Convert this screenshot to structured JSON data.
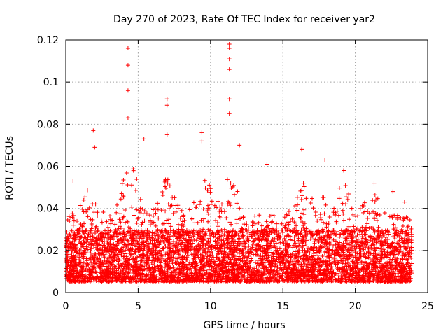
{
  "chart_data": {
    "type": "scatter",
    "title": "Day 270 of 2023, Rate Of TEC Index for receiver yar2",
    "xlabel": "GPS time / hours",
    "ylabel": "ROTI / TECUs",
    "xlim": [
      0,
      25
    ],
    "ylim": [
      0,
      0.12
    ],
    "xticks": [
      0,
      5,
      10,
      15,
      20,
      25
    ],
    "xtick_labels": [
      "0",
      "5",
      "10",
      "15",
      "20",
      "25"
    ],
    "yticks": [
      0,
      0.02,
      0.04,
      0.06,
      0.08,
      0.1,
      0.12
    ],
    "ytick_labels": [
      "0",
      "0.02",
      "0.04",
      "0.06",
      "0.08",
      "0.1",
      "0.12"
    ],
    "grid": true,
    "marker": "plus",
    "color": "#ff0000",
    "series": [
      {
        "name": "yar2",
        "x_range_hours": [
          0,
          23.9
        ],
        "typical_range": [
          0.005,
          0.03
        ],
        "peaks": [
          {
            "x": 4.3,
            "y": 0.116
          },
          {
            "x": 4.3,
            "y": 0.108
          },
          {
            "x": 4.3,
            "y": 0.096
          },
          {
            "x": 4.3,
            "y": 0.083
          },
          {
            "x": 11.3,
            "y": 0.118
          },
          {
            "x": 11.3,
            "y": 0.116
          },
          {
            "x": 11.3,
            "y": 0.111
          },
          {
            "x": 11.3,
            "y": 0.106
          },
          {
            "x": 11.3,
            "y": 0.092
          },
          {
            "x": 11.3,
            "y": 0.085
          },
          {
            "x": 7.0,
            "y": 0.092
          },
          {
            "x": 7.0,
            "y": 0.089
          },
          {
            "x": 7.0,
            "y": 0.075
          },
          {
            "x": 9.4,
            "y": 0.076
          },
          {
            "x": 9.4,
            "y": 0.072
          },
          {
            "x": 1.9,
            "y": 0.077
          },
          {
            "x": 2.0,
            "y": 0.069
          },
          {
            "x": 5.4,
            "y": 0.073
          },
          {
            "x": 12.0,
            "y": 0.07
          },
          {
            "x": 16.3,
            "y": 0.068
          },
          {
            "x": 17.9,
            "y": 0.063
          },
          {
            "x": 13.9,
            "y": 0.061
          },
          {
            "x": 19.2,
            "y": 0.058
          },
          {
            "x": 0.5,
            "y": 0.053
          },
          {
            "x": 21.3,
            "y": 0.052
          },
          {
            "x": 22.6,
            "y": 0.048
          },
          {
            "x": 23.4,
            "y": 0.043
          }
        ]
      }
    ]
  }
}
